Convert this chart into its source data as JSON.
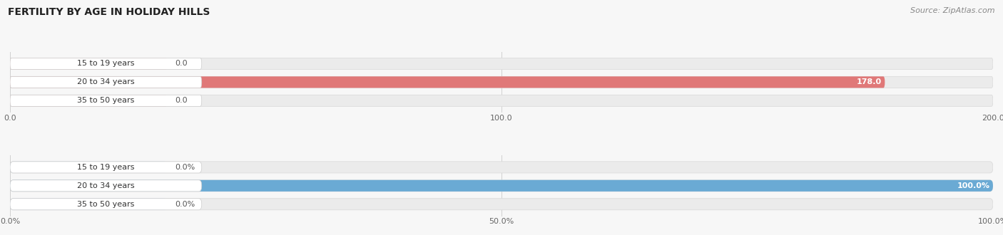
{
  "title": "FERTILITY BY AGE IN HOLIDAY HILLS",
  "source": "Source: ZipAtlas.com",
  "categories": [
    "15 to 19 years",
    "20 to 34 years",
    "35 to 50 years"
  ],
  "absolute_values": [
    0.0,
    178.0,
    0.0
  ],
  "absolute_max": 200.0,
  "absolute_xticks": [
    0.0,
    100.0,
    200.0
  ],
  "absolute_xtick_labels": [
    "0.0",
    "100.0",
    "200.0"
  ],
  "percent_values": [
    0.0,
    100.0,
    0.0
  ],
  "percent_max": 100.0,
  "percent_xticks": [
    0.0,
    50.0,
    100.0
  ],
  "percent_xtick_labels": [
    "0.0%",
    "50.0%",
    "100.0%"
  ],
  "bar_color_absolute": "#e07878",
  "bar_color_absolute_light": "#e8aaaa",
  "bar_color_percent": "#6aaad4",
  "bar_color_percent_light": "#aacce8",
  "bar_bg_color": "#ebebeb",
  "bar_bg_border_color": "#d8d8d8",
  "label_pill_color": "#ffffff",
  "gridline_color": "#d0d0d0",
  "title_fontsize": 10,
  "source_fontsize": 8,
  "bar_label_fontsize": 8,
  "axis_label_fontsize": 8,
  "category_fontsize": 8,
  "background_color": "#f7f7f7"
}
